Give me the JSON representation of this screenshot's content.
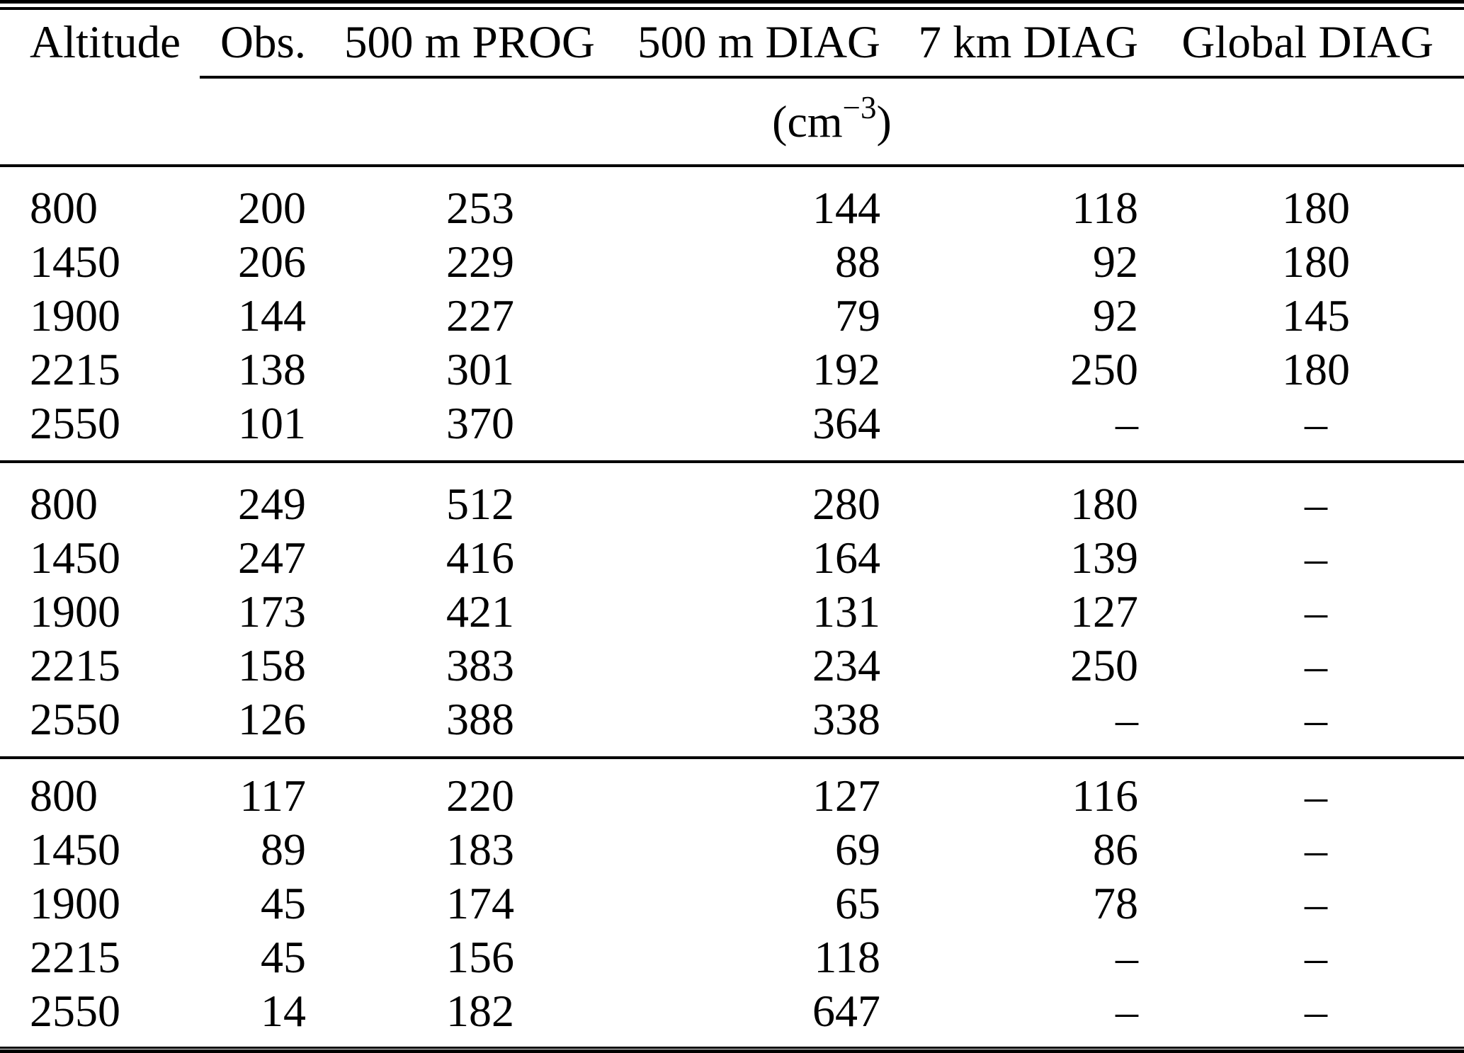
{
  "table": {
    "headers": [
      {
        "label": "Altitude"
      },
      {
        "label": "Obs."
      },
      {
        "label": "500 m PROG"
      },
      {
        "label": "500 m DIAG"
      },
      {
        "label": "7 km DIAG"
      },
      {
        "label": "Global DIAG"
      }
    ],
    "unit": {
      "prefix": "(cm",
      "exponent": "−3",
      "suffix": ")"
    },
    "blocks": [
      {
        "rows": [
          [
            "800",
            "200",
            "253",
            "144",
            "118",
            "180"
          ],
          [
            "1450",
            "206",
            "229",
            "88",
            "92",
            "180"
          ],
          [
            "1900",
            "144",
            "227",
            "79",
            "92",
            "145"
          ],
          [
            "2215",
            "138",
            "301",
            "192",
            "250",
            "180"
          ],
          [
            "2550",
            "101",
            "370",
            "364",
            "–",
            "–"
          ]
        ]
      },
      {
        "rows": [
          [
            "800",
            "249",
            "512",
            "280",
            "180",
            "–"
          ],
          [
            "1450",
            "247",
            "416",
            "164",
            "139",
            "–"
          ],
          [
            "1900",
            "173",
            "421",
            "131",
            "127",
            "–"
          ],
          [
            "2215",
            "158",
            "383",
            "234",
            "250",
            "–"
          ],
          [
            "2550",
            "126",
            "388",
            "338",
            "–",
            "–"
          ]
        ]
      },
      {
        "rows": [
          [
            "800",
            "117",
            "220",
            "127",
            "116",
            "–"
          ],
          [
            "1450",
            "89",
            "183",
            "69",
            "86",
            "–"
          ],
          [
            "1900",
            "45",
            "174",
            "65",
            "78",
            "–"
          ],
          [
            "2215",
            "45",
            "156",
            "118",
            "–",
            "–"
          ],
          [
            "2550",
            "14",
            "182",
            "647",
            "–",
            "–"
          ]
        ]
      }
    ]
  }
}
